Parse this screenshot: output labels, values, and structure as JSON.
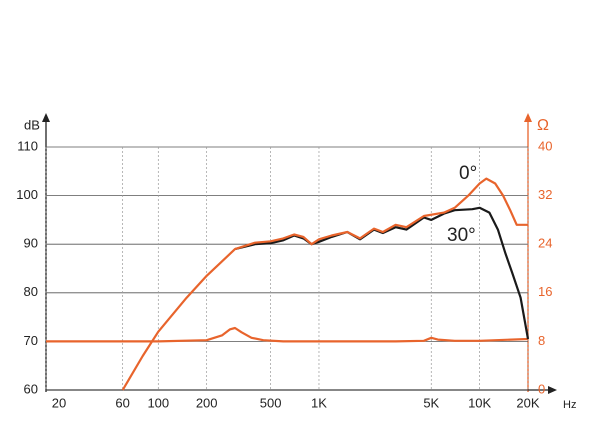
{
  "chart_data": {
    "type": "line",
    "x_label": "Hz",
    "y_label": "dB",
    "y2_label": "Ω",
    "xscale": "log",
    "xlim": [
      20,
      20000
    ],
    "xticks": [
      20,
      60,
      100,
      200,
      500,
      {
        "value": 1000,
        "label": "1K"
      },
      {
        "value": 5000,
        "label": "5K"
      },
      {
        "value": 10000,
        "label": "10K"
      },
      {
        "value": 20000,
        "label": "20K"
      }
    ],
    "ylim": [
      60,
      110
    ],
    "yticks": [
      60,
      70,
      80,
      90,
      100,
      110
    ],
    "y2lim": [
      0,
      40
    ],
    "y2ticks": [
      0,
      8,
      16,
      24,
      32,
      40
    ],
    "grid": true,
    "series": [
      {
        "name": "0°",
        "color": "#e8642c",
        "x": [
          60,
          80,
          100,
          150,
          200,
          300,
          400,
          500,
          600,
          700,
          800,
          900,
          1000,
          1200,
          1500,
          1800,
          2200,
          2500,
          3000,
          3500,
          4500,
          6000,
          7000,
          8500,
          10000,
          11000,
          12500,
          14000,
          15500,
          17000,
          20000
        ],
        "values": [
          60,
          67,
          72,
          79,
          83.5,
          89,
          90.3,
          90.6,
          91.2,
          92,
          91.5,
          90,
          91,
          91.8,
          92.5,
          91.2,
          93.2,
          92.5,
          94,
          93.5,
          95.8,
          96.5,
          97.5,
          100,
          102.5,
          103.5,
          102.5,
          100,
          97,
          94,
          94
        ]
      },
      {
        "name": "30°",
        "color": "#1a1a1a",
        "x": [
          300,
          400,
          500,
          600,
          700,
          800,
          900,
          1000,
          1200,
          1500,
          1800,
          2200,
          2500,
          3000,
          3500,
          4500,
          5000,
          6000,
          7000,
          9000,
          10000,
          11500,
          13000,
          14500,
          16000,
          18000,
          20000
        ],
        "values": [
          89,
          90,
          90.2,
          90.8,
          91.8,
          91.2,
          90,
          90.5,
          91.5,
          92.5,
          91,
          93,
          92.3,
          93.5,
          93,
          95.5,
          95,
          96.3,
          97,
          97.2,
          97.5,
          96.5,
          93,
          88,
          84,
          79,
          70.5
        ]
      },
      {
        "color": "#e8642c",
        "axis": "y2",
        "x": [
          20,
          50,
          100,
          200,
          250,
          280,
          300,
          330,
          380,
          450,
          600,
          1000,
          3000,
          4500,
          5000,
          5500,
          7000,
          10000,
          20000
        ],
        "values": [
          8,
          8,
          8,
          8.2,
          9,
          10,
          10.2,
          9.5,
          8.6,
          8.2,
          8,
          8,
          8,
          8.1,
          8.6,
          8.3,
          8.1,
          8.1,
          8.4
        ]
      }
    ]
  }
}
